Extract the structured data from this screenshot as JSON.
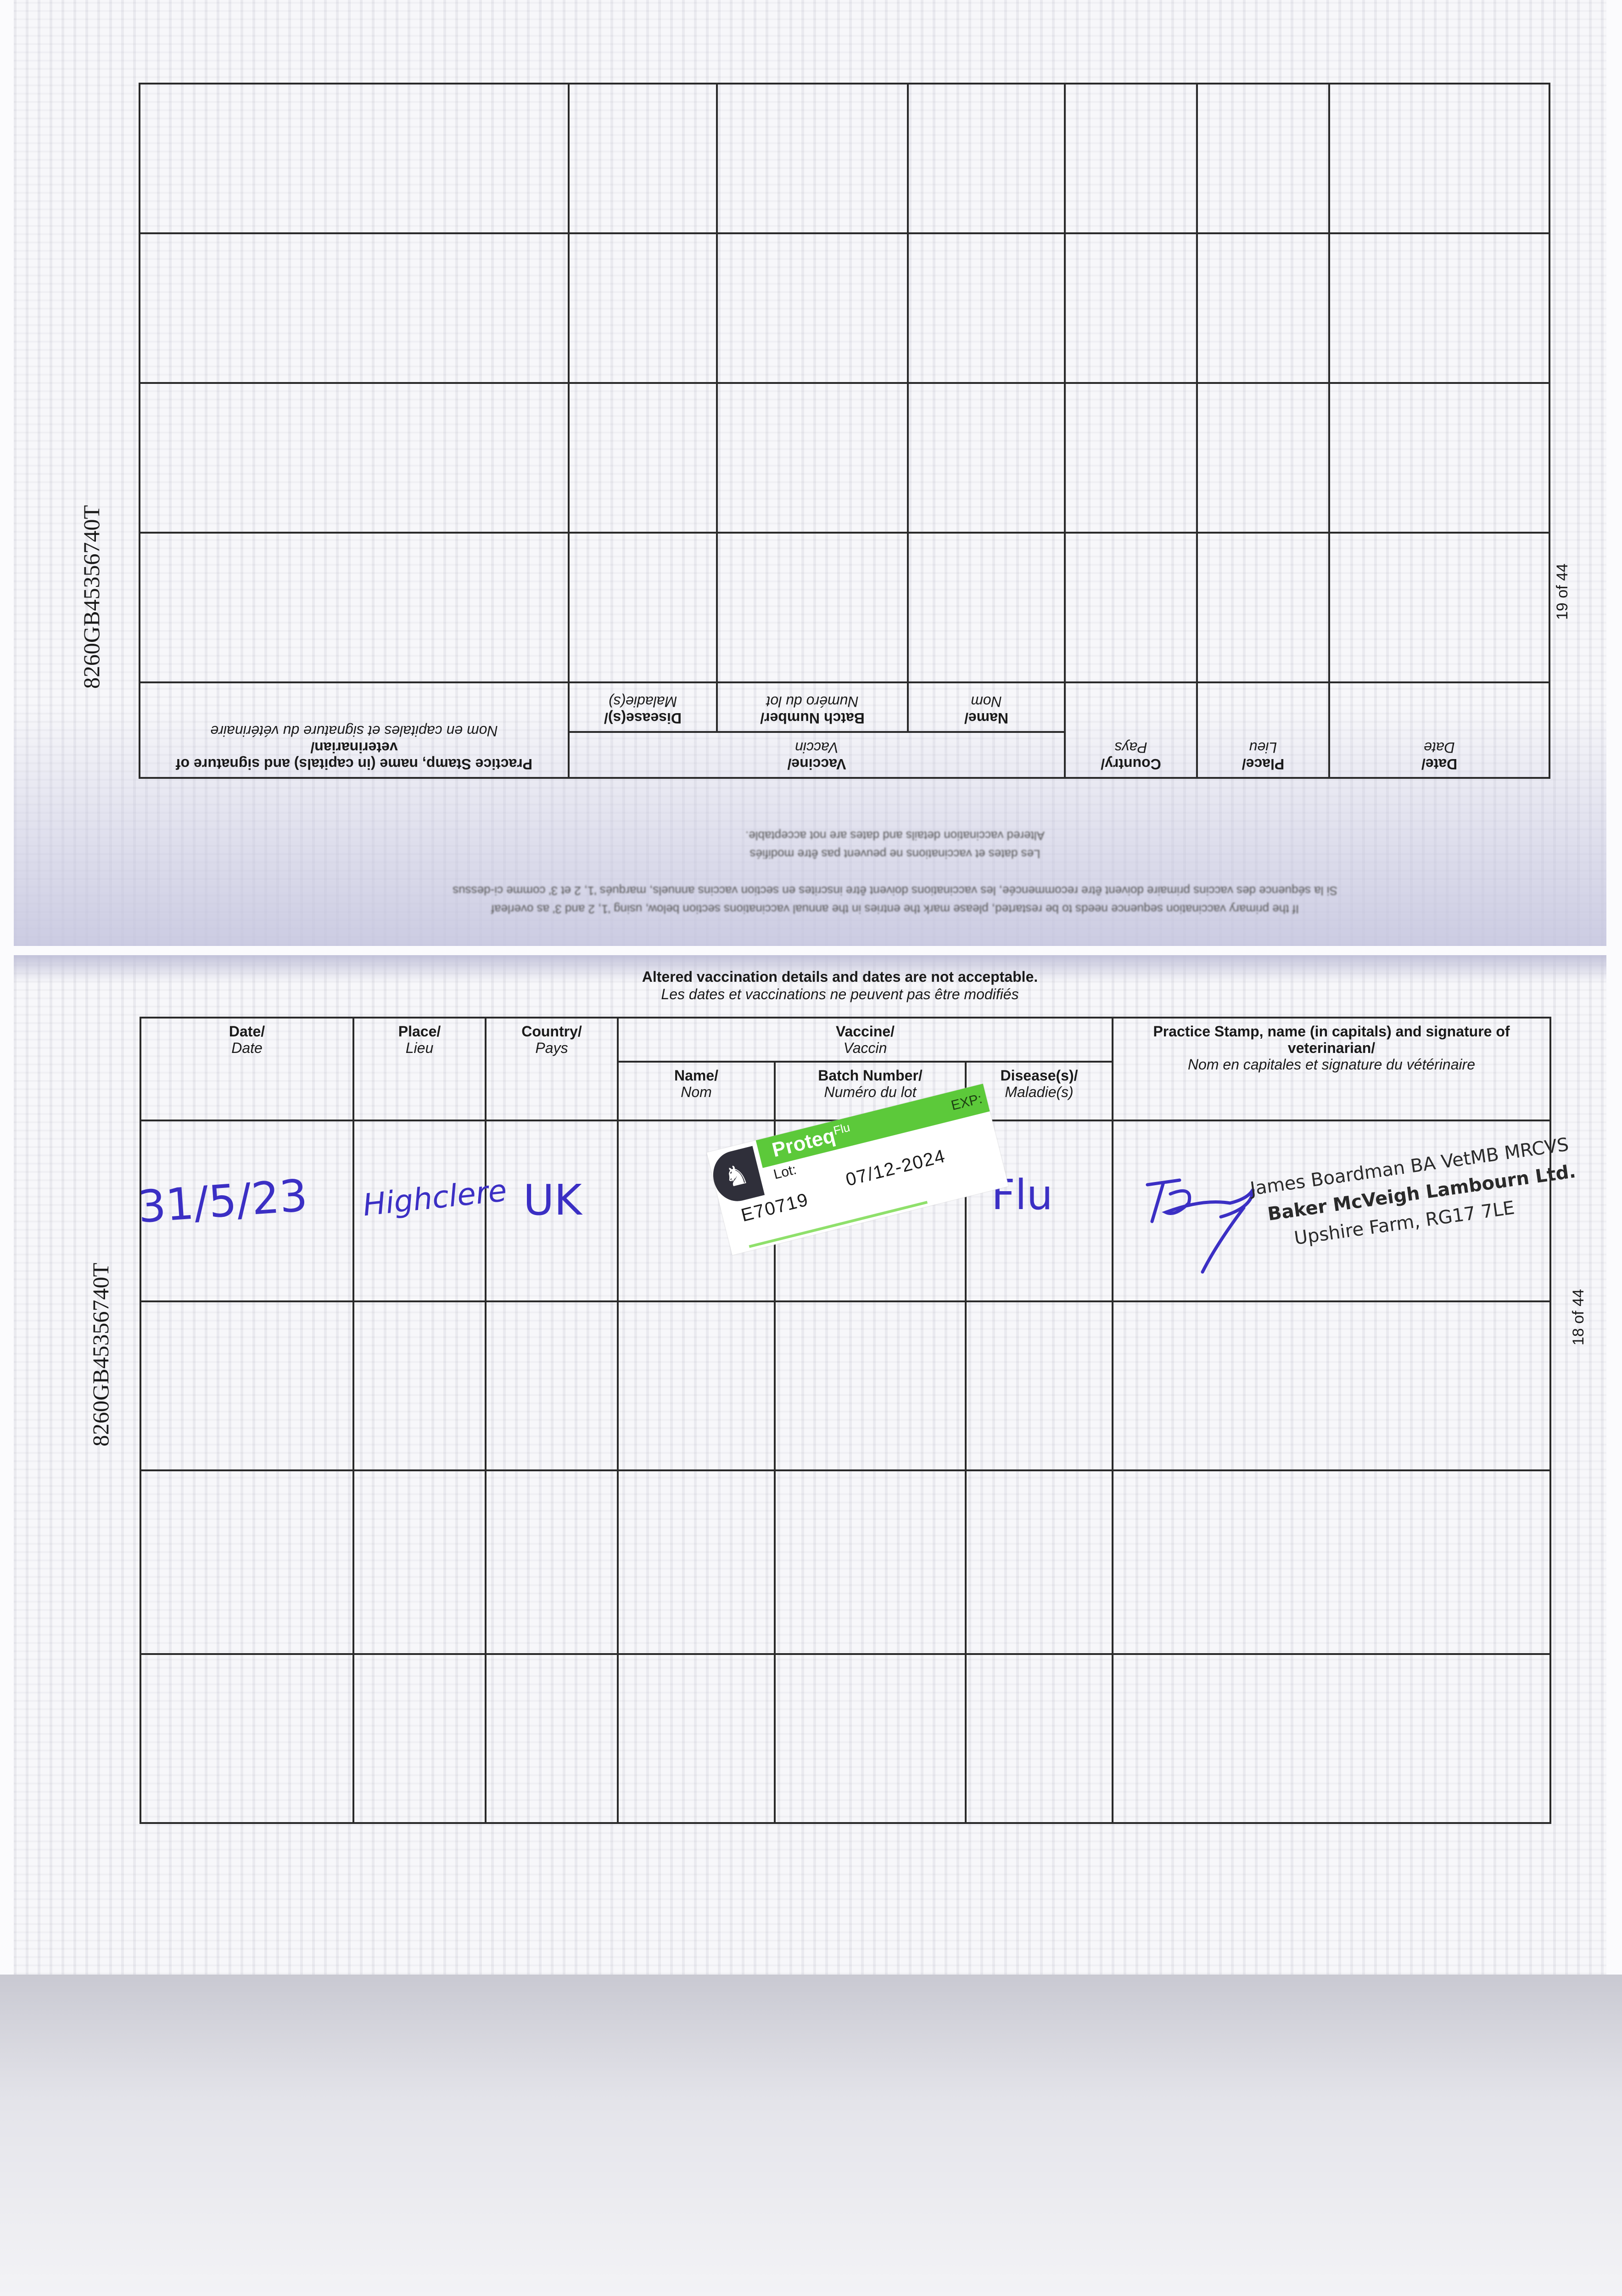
{
  "passport_id": "8260GB45356740T",
  "notice": {
    "en": "Altered vaccination details and dates are not acceptable.",
    "fr": "Les dates et vaccinations ne peuvent pas être modifiés"
  },
  "restart_note": {
    "en": "If the primary vaccination sequence needs to be restarted, please mark the entries in the annual vaccinations section below, using '1, 2 and 3' as overleaf",
    "fr": "Si la séquence des vaccins primaire doivent être recommencée, les vaccinations doivent être inscrites en section vaccins annuels, marqués '1, 2 et 3' comme ci-dessus"
  },
  "columns": {
    "date": {
      "en": "Date/",
      "fr": "Date"
    },
    "place": {
      "en": "Place/",
      "fr": "Lieu"
    },
    "country": {
      "en": "Country/",
      "fr": "Pays"
    },
    "vaccine": {
      "en": "Vaccine/",
      "fr": "Vaccin"
    },
    "name": {
      "en": "Name/",
      "fr": "Nom"
    },
    "batch": {
      "en": "Batch Number/",
      "fr": "Numéro du lot"
    },
    "disease": {
      "en": "Disease(s)/",
      "fr": "Maladie(s)"
    },
    "practice": {
      "en": "Practice Stamp, name (in capitals) and signature of veterinarian/",
      "fr": "Nom en capitales et signature du vétérinaire"
    }
  },
  "pages": {
    "top": {
      "page_label": "19 of 44",
      "rows": 4
    },
    "bottom": {
      "page_label": "18 of 44",
      "rows": 4
    }
  },
  "entry": {
    "date": "31/5/23",
    "place": "Highclere",
    "country": "UK",
    "disease": "Flu",
    "sticker": {
      "brand": "Proteq",
      "brand_suffix": "Flu",
      "lot_label": "Lot:",
      "exp_label": "EXP:",
      "lot": "E70719",
      "exp": "07/12-2024",
      "color": "#5cc93a"
    },
    "stamp": {
      "line1": "James Boardman BA VetMB MRCVS",
      "line2": "Baker McVeigh Lambourn Ltd.",
      "line3": "Upshire Farm, RG17 7LE"
    },
    "ink_color": "#3b2fc4"
  }
}
